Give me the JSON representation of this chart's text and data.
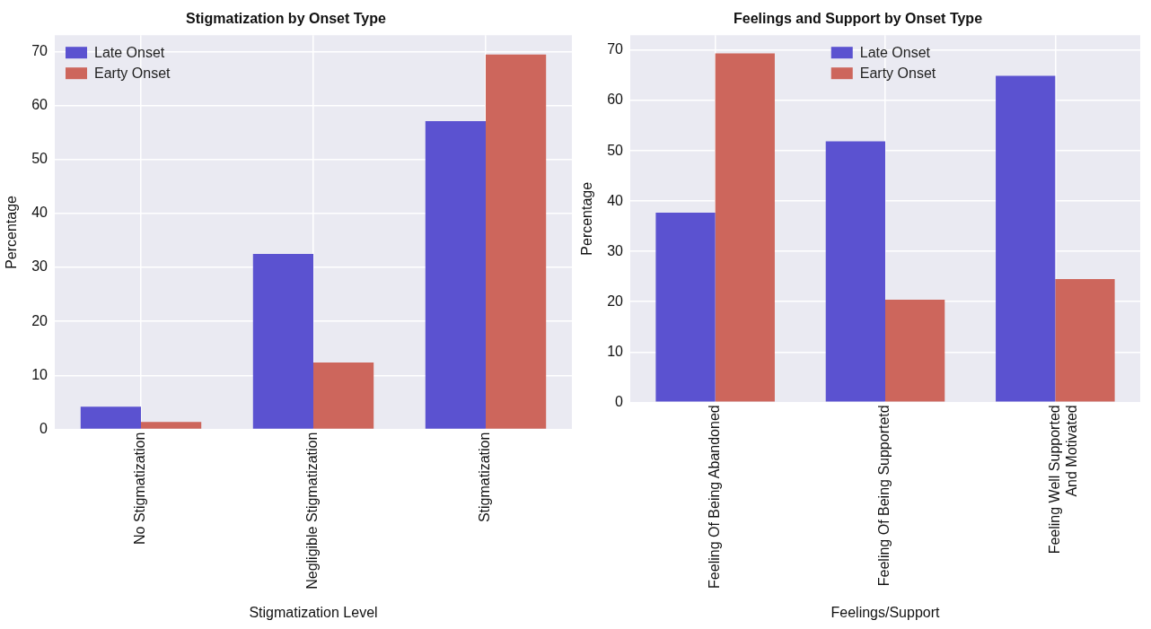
{
  "chart_data": [
    {
      "type": "bar",
      "title": "Stigmatization by Onset Type",
      "xlabel": "Stigmatization Level",
      "ylabel": "Percentage",
      "categories": [
        "No Stigmatization",
        "Negligible Stigmatization",
        "Stigmatization"
      ],
      "series": [
        {
          "name": "Late Onset",
          "color": "#5b52d0",
          "values": [
            4.2,
            32.5,
            57.1
          ]
        },
        {
          "name": "Earty Onset",
          "color": "#cd665c",
          "values": [
            1.4,
            12.4,
            69.4
          ]
        }
      ],
      "ylim": [
        0,
        73
      ],
      "yticks": [
        0,
        10,
        20,
        30,
        40,
        50,
        60,
        70
      ],
      "grid": true,
      "legend": "top left"
    },
    {
      "type": "bar",
      "title": "Feelings and Support by Onset Type",
      "xlabel": "Feelings/Support",
      "ylabel": "Percentage",
      "categories": [
        "Feeling Of Being Abandoned",
        "Feeling Of Being Supportetd",
        "Feeling Well Supported\nAnd Motivated"
      ],
      "series": [
        {
          "name": "Late Onset",
          "color": "#5b52d0",
          "values": [
            37.7,
            51.9,
            64.9
          ]
        },
        {
          "name": "Earty Onset",
          "color": "#cd665c",
          "values": [
            69.4,
            20.4,
            24.5
          ]
        }
      ],
      "ylim": [
        0,
        73
      ],
      "yticks": [
        0,
        10,
        20,
        30,
        40,
        50,
        60,
        70
      ],
      "grid": true,
      "legend": "top"
    }
  ]
}
